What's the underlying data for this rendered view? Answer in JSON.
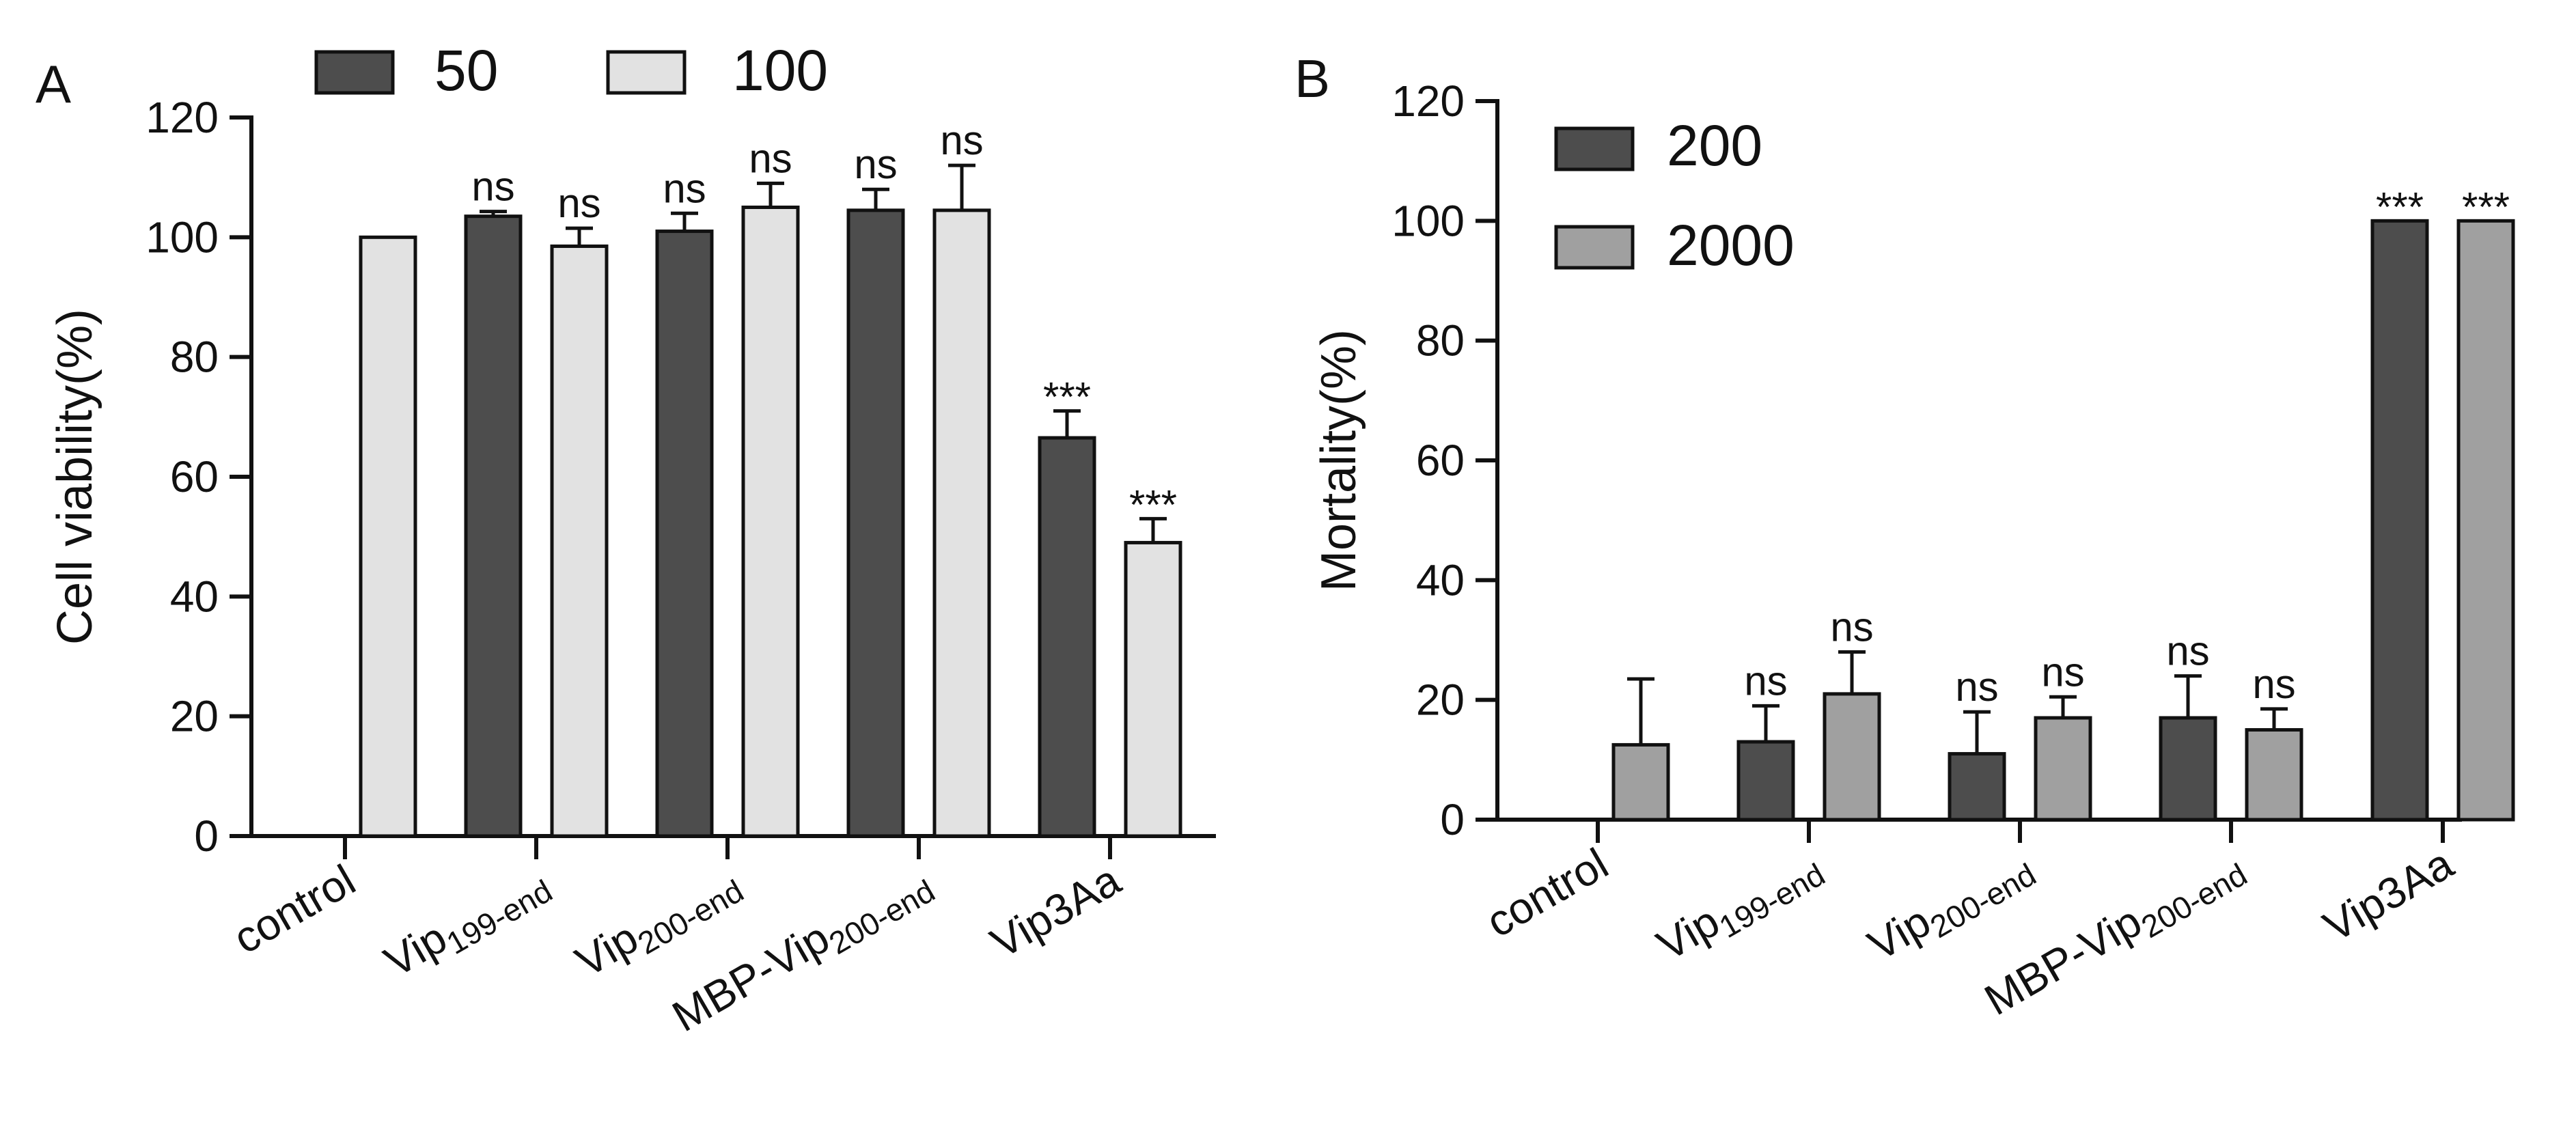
{
  "chart_data": [
    {
      "type": "bar",
      "panel_label": "A",
      "title": "",
      "xlabel": "",
      "ylabel": "Cell viability(%)",
      "ylim": [
        0,
        120
      ],
      "yticks": [
        0,
        20,
        40,
        60,
        80,
        100,
        120
      ],
      "grid": false,
      "legend_position": "top",
      "categories": [
        {
          "main": "control",
          "sub": ""
        },
        {
          "main": "Vip",
          "sub": "199-end"
        },
        {
          "main": "Vip",
          "sub": "200-end"
        },
        {
          "main": "MBP-Vip",
          "sub": "200-end"
        },
        {
          "main": "Vip3Aa",
          "sub": ""
        }
      ],
      "series": [
        {
          "name": "50",
          "color": "#4d4d4d",
          "values": [
            null,
            103.5,
            101,
            104.5,
            66.5
          ],
          "errors": [
            null,
            0.8,
            3,
            3.5,
            4.5
          ],
          "labels": [
            "",
            "ns",
            "ns",
            "ns",
            "***"
          ]
        },
        {
          "name": "100",
          "color": "#e2e2e2",
          "values": [
            100,
            98.5,
            105,
            104.5,
            49
          ],
          "errors": [
            null,
            3,
            4,
            7.5,
            4
          ],
          "labels": [
            "",
            "ns",
            "ns",
            "ns",
            "***"
          ]
        }
      ]
    },
    {
      "type": "bar",
      "panel_label": "B",
      "title": "",
      "xlabel": "",
      "ylabel": "Mortality(%)",
      "ylim": [
        0,
        120
      ],
      "yticks": [
        0,
        20,
        40,
        60,
        80,
        100,
        120
      ],
      "grid": false,
      "legend_position": "top-left",
      "categories": [
        {
          "main": "control",
          "sub": ""
        },
        {
          "main": "Vip",
          "sub": "199-end"
        },
        {
          "main": "Vip",
          "sub": "200-end"
        },
        {
          "main": "MBP-Vip",
          "sub": "200-end"
        },
        {
          "main": "Vip3Aa",
          "sub": ""
        }
      ],
      "series": [
        {
          "name": "200",
          "color": "#4d4d4d",
          "values": [
            null,
            13,
            11,
            17,
            100
          ],
          "errors": [
            null,
            6,
            7,
            7,
            null
          ],
          "labels": [
            "",
            "ns",
            "ns",
            "ns",
            "***"
          ]
        },
        {
          "name": "2000",
          "color": "#a0a0a0",
          "values": [
            12.5,
            21,
            17,
            15,
            100
          ],
          "errors": [
            11,
            7,
            3.5,
            3.5,
            null
          ],
          "labels": [
            "",
            "ns",
            "ns",
            "ns",
            "***"
          ]
        }
      ]
    }
  ]
}
